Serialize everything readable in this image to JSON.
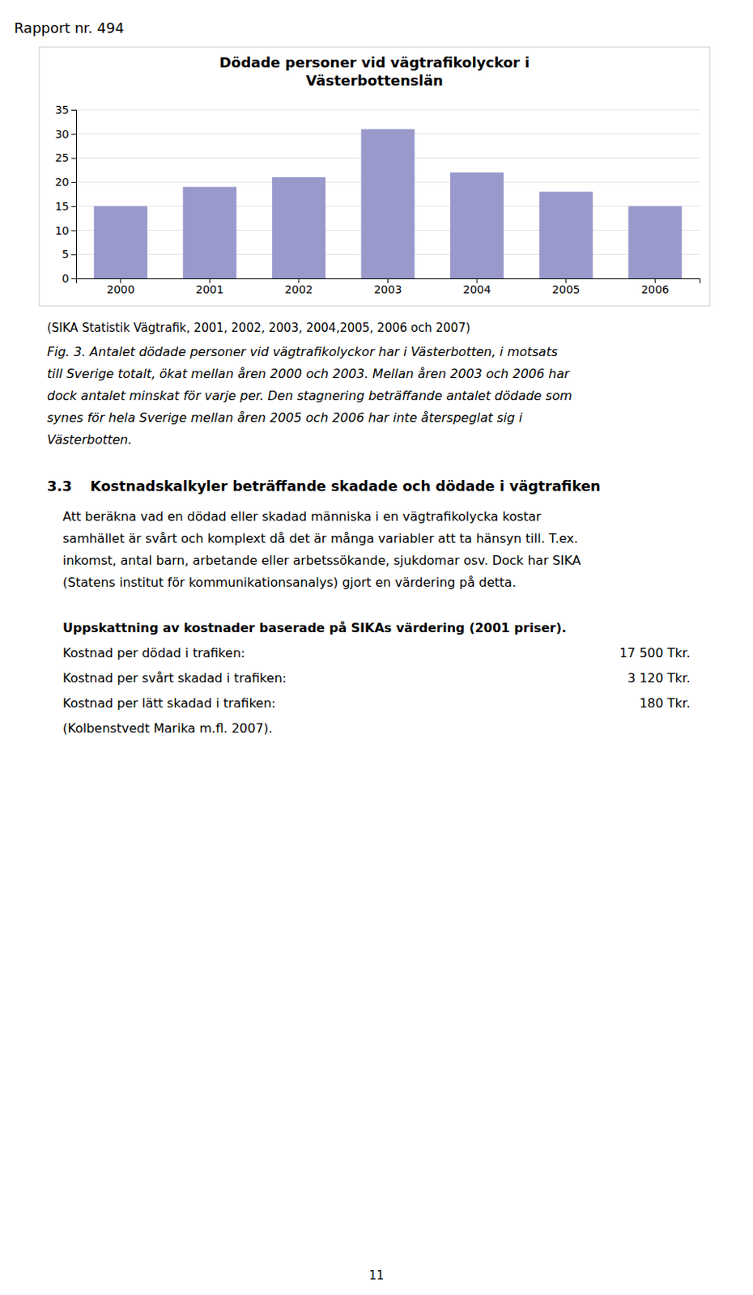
{
  "report_header": "Rapport nr. 494",
  "chart_data": {
    "type": "bar",
    "title": "Dödade personer vid vägtrafikolyckor i\nVästerbottenslän",
    "categories": [
      "2000",
      "2001",
      "2002",
      "2003",
      "2004",
      "2005",
      "2006"
    ],
    "values": [
      15,
      19,
      21,
      31,
      22,
      18,
      15
    ],
    "color": "#9999CC",
    "ylim": [
      0,
      35
    ],
    "yticks": [
      0,
      5,
      10,
      15,
      20,
      25,
      30,
      35
    ],
    "grid": true
  },
  "source_text": "(SIKA Statistik Vägtrafik, 2001, 2002, 2003, 2004,2005, 2006 och 2007)",
  "caption_lines": [
    "Fig. 3. Antalet dödade personer vid vägtrafikolyckor har i Västerbotten, i motsats",
    "till Sverige totalt, ökat mellan åren 2000 och 2003. Mellan åren 2003 och 2006 har",
    "dock antalet minskat för varje per. Den stagnering beträffande antalet dödade som",
    "synes för hela Sverige mellan åren 2005 och 2006 har inte återspeglat sig i",
    "Västerbotten."
  ],
  "section_num": "3.3",
  "section_title": "Kostnadskalkyler beträffande skadade och dödade i vägtrafiken",
  "body_lines": [
    "Att beräkna vad en dödad eller skadad människa i en vägtrafikolycka kostar",
    "samhället är svårt och komplext då det är många variabler att ta hänsyn till. T.ex.",
    "inkomst, antal barn, arbetande eller arbetssökande, sjukdomar osv. Dock har SIKA",
    "(Statens institut för kommunikationsanalys) gjort en värdering på detta."
  ],
  "bold_text": "Uppskattning av kostnader baserade på SIKAs värdering (2001 priser).",
  "cost_items": [
    {
      "label": "Kostnad per dödad i trafiken:",
      "value": "17 500 Tkr."
    },
    {
      "label": "Kostnad per svårt skadad i trafiken:",
      "value": "3 120 Tkr."
    },
    {
      "label": "Kostnad per lätt skadad i trafiken:",
      "value": "180 Tkr."
    }
  ],
  "ref_text": "(Kolbenstvedt Marika m.fl. 2007).",
  "page_number": "11"
}
